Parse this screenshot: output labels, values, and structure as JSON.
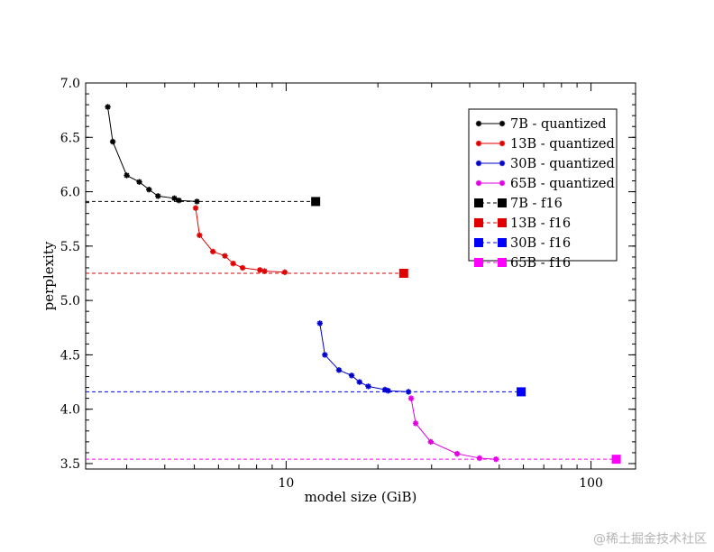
{
  "chart_data": {
    "type": "line",
    "xlabel": "model size (GiB)",
    "ylabel": "perplexity",
    "xscale": "log",
    "xlim": [
      2.2,
      140
    ],
    "ylim": [
      3.45,
      7.0
    ],
    "x_tick_labels": [
      {
        "value": 10,
        "label": "10"
      },
      {
        "value": 100,
        "label": "100"
      }
    ],
    "y_tick_labels": [
      {
        "value": 3.5,
        "label": "3.5"
      },
      {
        "value": 4.0,
        "label": "4.0"
      },
      {
        "value": 4.5,
        "label": "4.5"
      },
      {
        "value": 5.0,
        "label": "5.0"
      },
      {
        "value": 5.5,
        "label": "5.5"
      },
      {
        "value": 6.0,
        "label": "6.0"
      },
      {
        "value": 6.5,
        "label": "6.5"
      },
      {
        "value": 7.0,
        "label": "7.0"
      }
    ],
    "grid": false,
    "legend_position": "top-right",
    "series": [
      {
        "name": "7B - quantized",
        "kind": "quantized",
        "color": "#000000",
        "x": [
          2.6,
          2.7,
          3.0,
          3.3,
          3.55,
          3.8,
          4.3,
          4.45,
          5.1
        ],
        "y": [
          6.78,
          6.46,
          6.15,
          6.09,
          6.02,
          5.96,
          5.94,
          5.92,
          5.91
        ]
      },
      {
        "name": "13B - quantized",
        "kind": "quantized",
        "color": "#e00000",
        "x": [
          5.05,
          5.2,
          5.75,
          6.3,
          6.7,
          7.2,
          8.2,
          8.5,
          9.9
        ],
        "y": [
          5.85,
          5.6,
          5.45,
          5.41,
          5.34,
          5.3,
          5.28,
          5.27,
          5.26
        ]
      },
      {
        "name": "30B - quantized",
        "kind": "quantized",
        "color": "#0000cc",
        "x": [
          12.9,
          13.4,
          14.9,
          16.4,
          17.4,
          18.6,
          21.1,
          21.6,
          25.2
        ],
        "y": [
          4.79,
          4.5,
          4.36,
          4.31,
          4.25,
          4.21,
          4.18,
          4.17,
          4.16
        ]
      },
      {
        "name": "65B - quantized",
        "kind": "quantized",
        "color": "#e000e0",
        "x": [
          25.7,
          26.6,
          29.8,
          36.4,
          43.1,
          48.8
        ],
        "y": [
          4.1,
          3.87,
          3.7,
          3.59,
          3.55,
          3.54
        ]
      },
      {
        "name": "7B - f16",
        "kind": "f16",
        "color": "#000000",
        "x": [
          2.2,
          12.5
        ],
        "y": [
          5.91,
          5.91
        ]
      },
      {
        "name": "13B - f16",
        "kind": "f16",
        "color": "#e00000",
        "x": [
          2.2,
          24.3
        ],
        "y": [
          5.25,
          5.25
        ]
      },
      {
        "name": "30B - f16",
        "kind": "f16",
        "color": "#0000ff",
        "x": [
          2.2,
          59.0
        ],
        "y": [
          4.16,
          4.16
        ]
      },
      {
        "name": "65B - f16",
        "kind": "f16",
        "color": "#ff00ff",
        "x": [
          2.2,
          121.0
        ],
        "y": [
          3.54,
          3.54
        ]
      }
    ]
  },
  "watermark": "@稀土掘金技术社区"
}
